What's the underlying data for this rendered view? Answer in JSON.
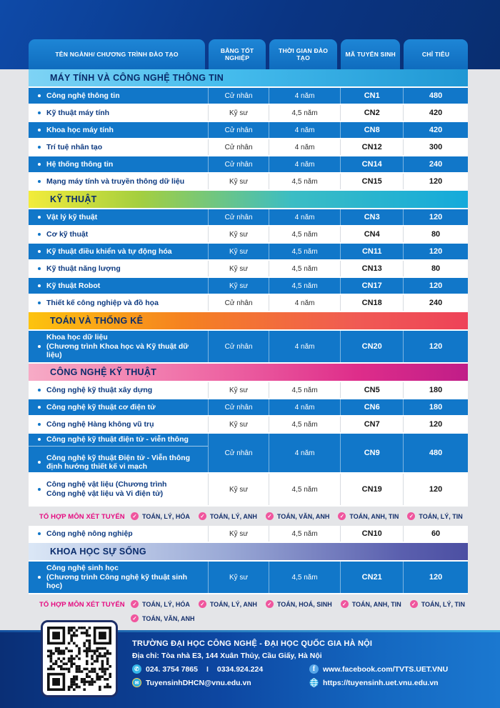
{
  "colors": {
    "row_highlight_blue": "#1177c9",
    "header_tab_blue": "#1476c6",
    "top_band_navy": "#0a3584",
    "combo_label_pink": "#e5097f",
    "check_icon_pink": "#f0569e",
    "program_name_navy": "#0d3a80"
  },
  "table": {
    "columns": [
      "TÊN NGÀNH/ CHƯƠNG TRÌNH ĐÀO TẠO",
      "BẰNG TỐT NGHIỆP",
      "THỜI GIAN ĐÀO TẠO",
      "MÃ TUYỂN SINH",
      "CHỈ TIÊU"
    ],
    "blocks": [
      {
        "type": "section",
        "title": "MÁY TÍNH VÀ CÔNG NGHỆ THÔNG TIN",
        "gradient": [
          "#7ed3f5",
          "#45bced 45%",
          "#1f97d4"
        ],
        "rows": [
          {
            "name": "Công nghệ thông tin",
            "degree": "Cử nhân",
            "duration": "4 năm",
            "code": "CN1",
            "quota": "480",
            "hl": true
          },
          {
            "name": "Kỹ thuật máy tính",
            "degree": "Kỹ sư",
            "duration": "4,5 năm",
            "code": "CN2",
            "quota": "420",
            "hl": false
          },
          {
            "name": "Khoa học máy tính",
            "degree": "Cử nhân",
            "duration": "4 năm",
            "code": "CN8",
            "quota": "420",
            "hl": true
          },
          {
            "name": "Trí tuệ nhân tạo",
            "degree": "Cử nhân",
            "duration": "4 năm",
            "code": "CN12",
            "quota": "300",
            "hl": false
          },
          {
            "name": "Hệ thống thông tin",
            "degree": "Cử nhân",
            "duration": "4 năm",
            "code": "CN14",
            "quota": "240",
            "hl": true
          },
          {
            "name": "Mạng máy tính và truyền thông dữ liệu",
            "degree": "Kỹ sư",
            "duration": "4,5 năm",
            "code": "CN15",
            "quota": "120",
            "hl": false
          }
        ]
      },
      {
        "type": "section",
        "title": "KỸ THUẬT",
        "gradient": [
          "#f3ec3b",
          "#a5cf3e 25%",
          "#3bbdc4 60%",
          "#14aadb"
        ],
        "rows": [
          {
            "name": "Vật lý kỹ thuật",
            "degree": "Cử nhân",
            "duration": "4 năm",
            "code": "CN3",
            "quota": "120",
            "hl": true
          },
          {
            "name": "Cơ kỹ thuật",
            "degree": "Kỹ sư",
            "duration": "4,5 năm",
            "code": "CN4",
            "quota": "80",
            "hl": false
          },
          {
            "name": "Kỹ thuật điều khiển và tự động hóa",
            "degree": "Kỹ sư",
            "duration": "4,5 năm",
            "code": "CN11",
            "quota": "120",
            "hl": true
          },
          {
            "name": "Kỹ thuật năng lượng",
            "degree": "Kỹ sư",
            "duration": "4,5 năm",
            "code": "CN13",
            "quota": "80",
            "hl": false
          },
          {
            "name": "Kỹ thuật Robot",
            "degree": "Kỹ sư",
            "duration": "4,5 năm",
            "code": "CN17",
            "quota": "120",
            "hl": true
          },
          {
            "name": "Thiết kế công nghiệp và đồ họa",
            "degree": "Cử nhân",
            "duration": "4 năm",
            "code": "CN18",
            "quota": "240",
            "hl": false
          }
        ]
      },
      {
        "type": "section",
        "title": "TOÁN VÀ THỐNG KÊ",
        "gradient": [
          "#fdc30f",
          "#f58220 35%",
          "#f05a54 75%",
          "#ee4258"
        ],
        "rows": [
          {
            "name": [
              "Khoa học dữ liệu",
              "(Chương trình Khoa học và Kỹ thuật dữ liệu)"
            ],
            "degree": "Cử nhân",
            "duration": "4 năm",
            "code": "CN20",
            "quota": "120",
            "hl": true
          }
        ]
      },
      {
        "type": "section",
        "title": "CÔNG NGHỆ KỸ THUẬT",
        "gradient": [
          "#f7abc6",
          "#ef6ba6 40%",
          "#de2d8a 75%",
          "#c01d88"
        ],
        "rows": [
          {
            "name": "Công nghệ kỹ thuật xây dựng",
            "degree": "Kỹ sư",
            "duration": "4,5 năm",
            "code": "CN5",
            "quota": "180",
            "hl": false
          },
          {
            "name": "Công nghệ kỹ thuật cơ điện tử",
            "degree": "Cử nhân",
            "duration": "4 năm",
            "code": "CN6",
            "quota": "180",
            "hl": true
          },
          {
            "name": "Công nghệ Hàng không vũ trụ",
            "degree": "Kỹ sư",
            "duration": "4,5 năm",
            "code": "CN7",
            "quota": "120",
            "hl": false
          },
          {
            "programs": [
              [
                "Công nghệ kỹ thuật điện tử - viễn thông"
              ],
              [
                "Công nghệ kỹ thuật Điện tử - Viễn thông",
                "định hướng thiết kế vi mạch"
              ]
            ],
            "degree": "Cử nhân",
            "duration": "4 năm",
            "code": "CN9",
            "quota": "480",
            "hl": true
          },
          {
            "name": [
              "Công nghệ vật liệu (Chương trình",
              "Công nghệ vật liệu và Vi điện tử)"
            ],
            "degree": "Kỹ sư",
            "duration": "4,5 năm",
            "code": "CN19",
            "quota": "120",
            "hl": false
          }
        ]
      },
      {
        "type": "combos",
        "label": "TỔ HỢP MÔN XÉT TUYỂN",
        "items": [
          "TOÁN, LÝ, HÓA",
          "TOÁN, LÝ, ANH",
          "TOÁN, VĂN, ANH",
          "TOÁN, ANH, TIN",
          "TOÁN, LÝ, TIN"
        ]
      },
      {
        "type": "rows",
        "rows": [
          {
            "name": "Công nghệ nông nghiệp",
            "degree": "Kỹ sư",
            "duration": "4,5 năm",
            "code": "CN10",
            "quota": "60",
            "hl": false
          }
        ]
      },
      {
        "type": "section",
        "title": "KHOA HỌC SỰ SỐNG",
        "gradient": [
          "#dbe7f6",
          "#9aa9d6 45%",
          "#5a5fae 85%",
          "#4c4fa2"
        ],
        "rows": [
          {
            "name": [
              "Công nghệ sinh học",
              "(Chương trình Công nghệ kỹ thuật sinh học)"
            ],
            "degree": "Kỹ sư",
            "duration": "4,5 năm",
            "code": "CN21",
            "quota": "120",
            "hl": true
          }
        ]
      },
      {
        "type": "combos",
        "label": "TỔ HỢP MÔN XÉT TUYỂN",
        "items": [
          "TOÁN, LÝ, HÓA",
          "TOÁN, LÝ, ANH",
          "TOÁN, HOÁ, SINH",
          "TOÁN, ANH, TIN",
          "TOÁN, LÝ, TIN",
          "TOÁN, VĂN, ANH"
        ]
      }
    ]
  },
  "footer": {
    "name": "TRƯỜNG ĐẠI HỌC CÔNG NGHỆ - ĐẠI HỌC QUỐC GIA HÀ NỘI",
    "address": "Địa chỉ: Tòa nhà E3, 144 Xuân Thủy, Cầu Giấy, Hà Nội",
    "phone1": "024. 3754 7865",
    "phone_separator": "I",
    "phone2": "0334.924.224",
    "email": "TuyensinhDHCN@vnu.edu.vn",
    "facebook": "www.facebook.com/TVTS.UET.VNU",
    "website": "https://tuyensinh.uet.vnu.edu.vn"
  }
}
